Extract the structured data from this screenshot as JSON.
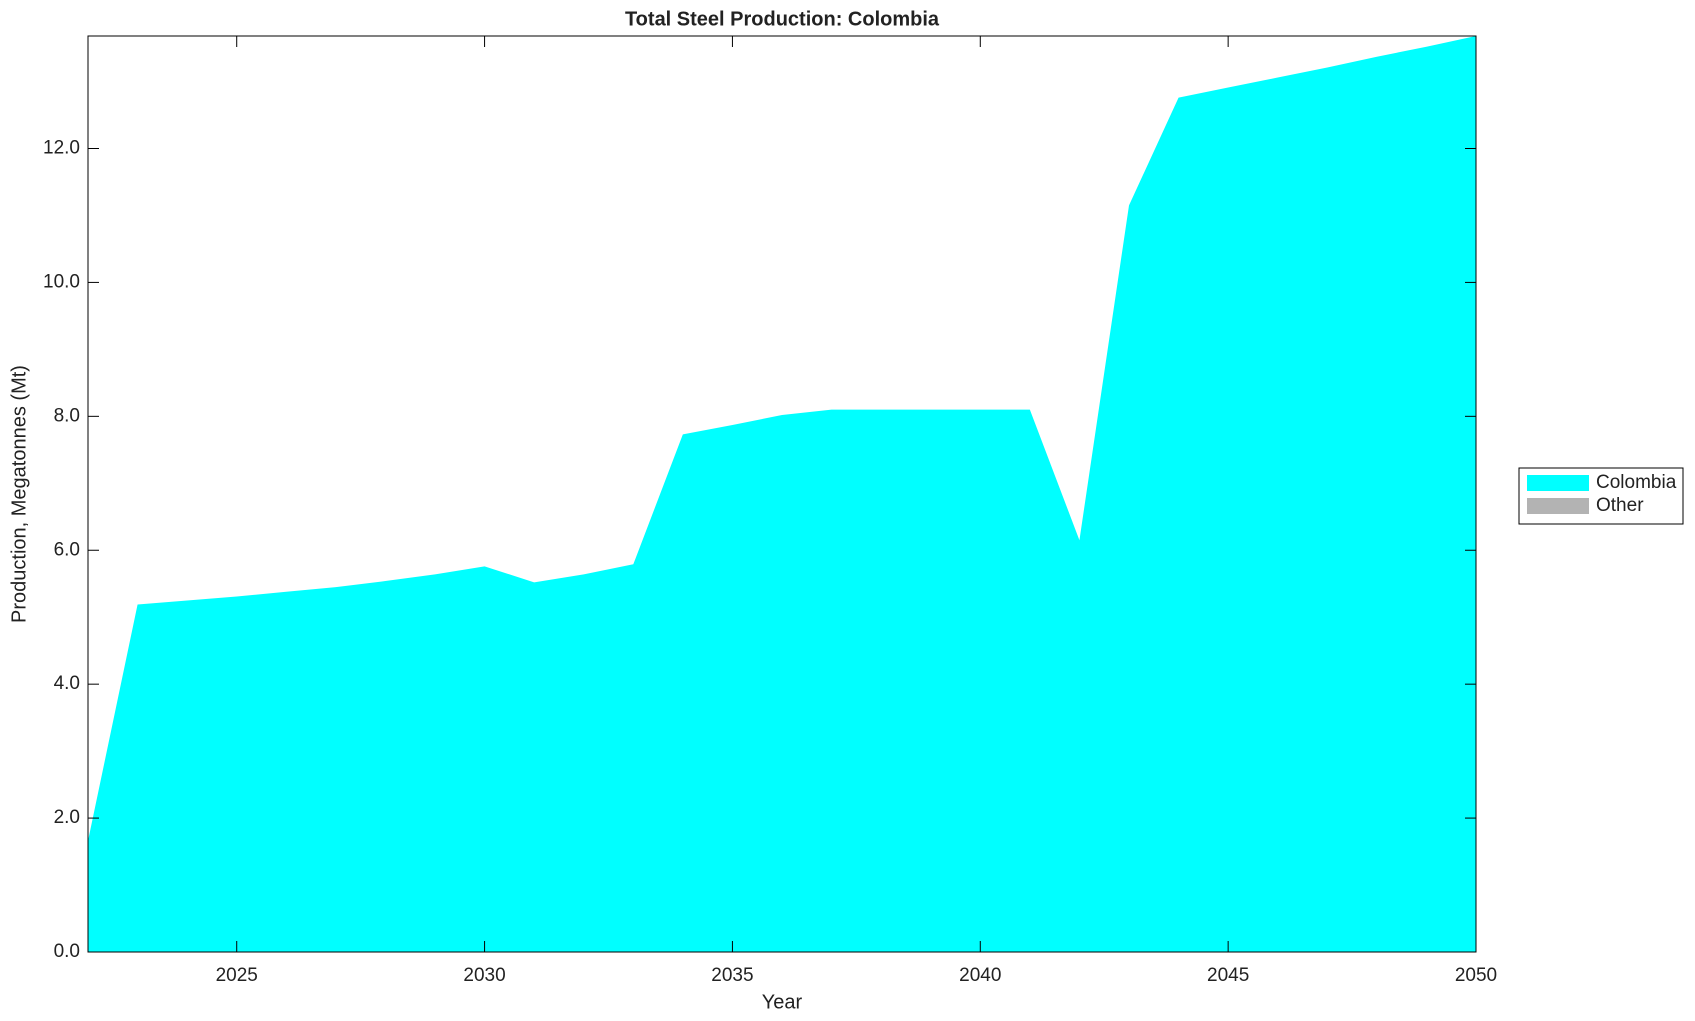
{
  "chart_data": {
    "type": "stacked-area",
    "title": "Total Steel Production: Colombia",
    "xlabel": "Year",
    "ylabel": "Production, Megatonnes (Mt)",
    "x": [
      2022,
      2023,
      2024,
      2025,
      2026,
      2027,
      2028,
      2029,
      2030,
      2031,
      2032,
      2033,
      2034,
      2035,
      2036,
      2037,
      2038,
      2039,
      2040,
      2041,
      2042,
      2043,
      2044,
      2045,
      2046,
      2047,
      2048,
      2049,
      2050
    ],
    "series": [
      {
        "name": "Colombia",
        "color": "#00ffff",
        "values": [
          1.66,
          5.19,
          5.25,
          5.31,
          5.38,
          5.45,
          5.54,
          5.64,
          5.76,
          5.52,
          5.64,
          5.79,
          7.73,
          7.87,
          8.02,
          8.1,
          8.1,
          8.1,
          8.1,
          8.1,
          6.15,
          11.15,
          12.76,
          12.91,
          13.06,
          13.21,
          13.37,
          13.52,
          13.68
        ]
      },
      {
        "name": "Other",
        "color": "#b3b3b3",
        "values": [
          0,
          0,
          0,
          0,
          0,
          0,
          0,
          0,
          0,
          0,
          0,
          0,
          0,
          0,
          0,
          0,
          0,
          0,
          0,
          0,
          0,
          0,
          0,
          0,
          0,
          0,
          0,
          0,
          0
        ]
      }
    ],
    "xlim": [
      2022,
      2050
    ],
    "xticks": [
      2025,
      2030,
      2035,
      2040,
      2045,
      2050
    ],
    "ylim": [
      0,
      13.68
    ],
    "yticks": [
      {
        "value": 0,
        "label": "0.0"
      },
      {
        "value": 2,
        "label": "2.0"
      },
      {
        "value": 4,
        "label": "4.0"
      },
      {
        "value": 6,
        "label": "6.0"
      },
      {
        "value": 8,
        "label": "8.0"
      },
      {
        "value": 10,
        "label": "10.0"
      },
      {
        "value": 12,
        "label": "12.0"
      }
    ],
    "legend": "right"
  }
}
